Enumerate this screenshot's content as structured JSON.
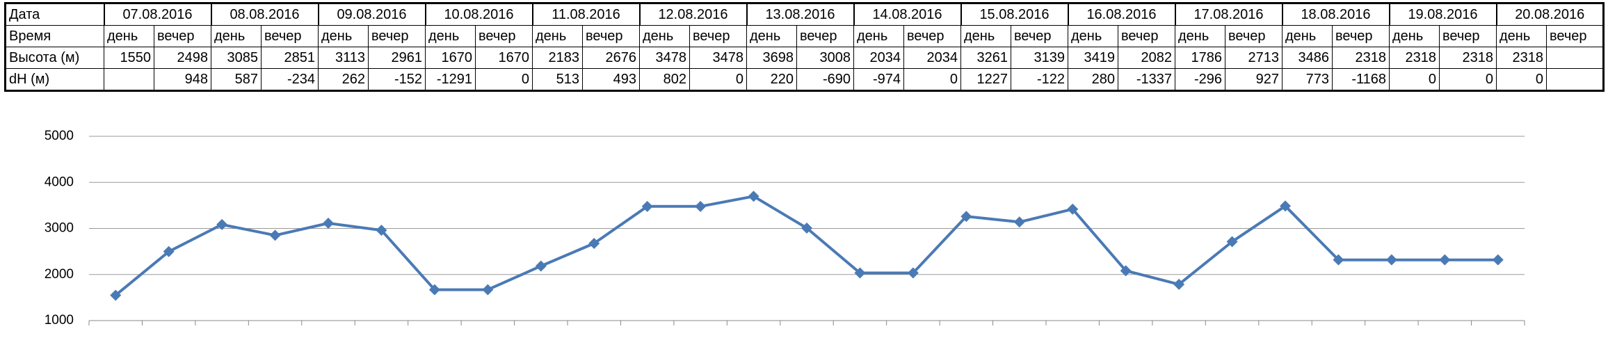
{
  "table": {
    "header": [
      "Дата",
      "07.08.2016",
      "08.08.2016",
      "09.08.2016",
      "10.08.2016",
      "11.08.2016",
      "12.08.2016",
      "13.08.2016",
      "14.08.2016",
      "15.08.2016",
      "16.08.2016",
      "17.08.2016",
      "18.08.2016",
      "19.08.2016",
      "20.08.2016"
    ],
    "rows": [
      [
        "Время",
        "день",
        "вечер",
        "день",
        "вечер",
        "день",
        "вечер",
        "день",
        "вечер",
        "день",
        "вечер",
        "день",
        "вечер",
        "день",
        "вечер",
        "день",
        "вечер",
        "день",
        "вечер",
        "день",
        "вечер",
        "день",
        "вечер",
        "день",
        "вечер",
        "день",
        "вечер",
        "день",
        "вечер"
      ],
      [
        "Высота (м)",
        1550,
        2498,
        3085,
        2851,
        3113,
        2961,
        1670,
        1670,
        2183,
        2676,
        3478,
        3478,
        3698,
        3008,
        2034,
        2034,
        3261,
        3139,
        3419,
        2082,
        1786,
        2713,
        3486,
        2318,
        2318,
        2318,
        2318,
        null
      ],
      [
        "dH (м)",
        null,
        948,
        587,
        -234,
        262,
        -152,
        -1291,
        0,
        513,
        493,
        802,
        0,
        220,
        -690,
        -974,
        0,
        1227,
        -122,
        280,
        -1337,
        -296,
        927,
        773,
        -1168,
        0,
        0,
        0,
        null
      ]
    ]
  },
  "chart_data": {
    "type": "line",
    "series": [
      {
        "color": "#4a7ab5",
        "values": [
          1550,
          2498,
          3085,
          2851,
          3113,
          2961,
          1670,
          1670,
          2183,
          2676,
          3478,
          3478,
          3698,
          3008,
          2034,
          2034,
          3261,
          3139,
          3419,
          2082,
          1786,
          2713,
          3486,
          2318,
          2318,
          2318,
          2318
        ]
      }
    ],
    "ylim": [
      1000,
      5000
    ],
    "yticks": [
      1000,
      2000,
      3000,
      4000,
      5000
    ],
    "grid": true
  }
}
